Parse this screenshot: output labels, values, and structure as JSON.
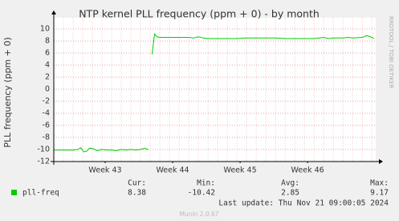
{
  "chart_data": {
    "type": "line",
    "title": "NTP kernel PLL frequency (ppm + 0) - by month",
    "y_label": "PLL frequency (ppm + 0)",
    "side_label": "RRDTOOL / TOBI OETIKER",
    "x": [
      0,
      0.5,
      1,
      1.5,
      2,
      2.5,
      2.8,
      3.1,
      3.4,
      3.7,
      4,
      4.5,
      5,
      5.5,
      6,
      6.5,
      7,
      7.5,
      8,
      8.5,
      9,
      9.4,
      9.8,
      10,
      10.2,
      10.45,
      10.7,
      11,
      12,
      13,
      14,
      14.5,
      15,
      15.5,
      16,
      17,
      18,
      19,
      20,
      21,
      22,
      23,
      24,
      25,
      26,
      27,
      28,
      28.5,
      29,
      30,
      30.5,
      31,
      32,
      32.5,
      33,
      33.2
    ],
    "series": [
      {
        "name": "pll-freq",
        "color": "#00cc00",
        "values": [
          -10.1,
          -10.1,
          -10.1,
          -10.1,
          -10.1,
          -10.0,
          -9.7,
          -10.4,
          -10.3,
          -9.8,
          -9.8,
          -10.2,
          -10.0,
          -10.1,
          -10.1,
          -10.2,
          -10.0,
          -10.1,
          -10.0,
          -10.1,
          -10.0,
          -9.8,
          -10.0,
          null,
          5.8,
          9.17,
          8.7,
          8.6,
          8.6,
          8.6,
          8.6,
          8.5,
          8.7,
          8.5,
          8.4,
          8.4,
          8.4,
          8.4,
          8.5,
          8.5,
          8.5,
          8.5,
          8.4,
          8.4,
          8.4,
          8.4,
          8.6,
          8.4,
          8.5,
          8.5,
          8.6,
          8.5,
          8.6,
          8.9,
          8.6,
          8.38
        ]
      }
    ],
    "xlim": [
      0,
      33.4
    ],
    "xticks": [
      {
        "value": 5.33,
        "label": "Week 43"
      },
      {
        "value": 12.33,
        "label": "Week 44"
      },
      {
        "value": 19.33,
        "label": "Week 45"
      },
      {
        "value": 26.33,
        "label": "Week 46"
      }
    ],
    "ylim": [
      -12,
      11
    ],
    "yticks": [
      -12,
      -10,
      -8,
      -6,
      -4,
      -2,
      0,
      2,
      4,
      6,
      8,
      10
    ],
    "grid": true,
    "stats": {
      "headers": [
        "Cur:",
        "Min:",
        "Avg:",
        "Max:"
      ],
      "values": [
        8.38,
        -10.42,
        2.85,
        9.17
      ]
    },
    "last_update": "Last update: Thu Nov 21 09:00:05 2024",
    "footer": "Munin 2.0.67"
  }
}
